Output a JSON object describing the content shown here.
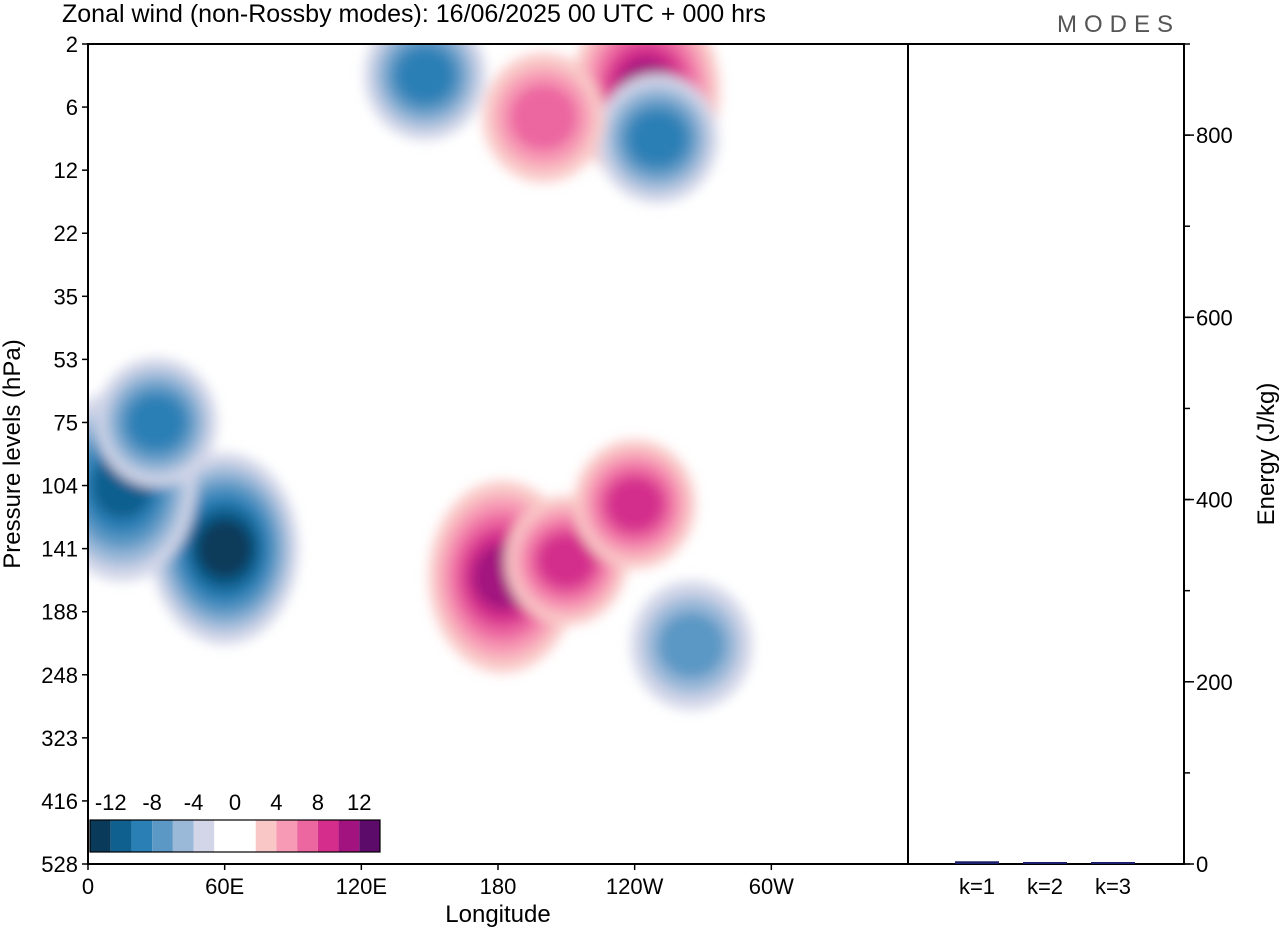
{
  "header": {
    "title": "Zonal wind (non-Rossby modes):  16/06/2025  00 UTC  + 000 hrs",
    "logo": "MODES"
  },
  "chart_data": [
    {
      "type": "heatmap",
      "title": "Zonal wind (non-Rossby modes):  16/06/2025  00 UTC  + 000 hrs",
      "xlabel": "Longitude",
      "ylabel": "Pressure levels (hPa)",
      "x_ticks": [
        "0",
        "60E",
        "120E",
        "180",
        "120W",
        "60W"
      ],
      "x_tick_degrees": [
        0,
        60,
        120,
        180,
        240,
        300
      ],
      "xlim": [
        0,
        360
      ],
      "y_levels": [
        "2",
        "6",
        "12",
        "22",
        "35",
        "53",
        "75",
        "104",
        "141",
        "188",
        "248",
        "323",
        "416",
        "528"
      ],
      "colorbar": {
        "labels": [
          "-12",
          "-8",
          "-4",
          "0",
          "4",
          "8",
          "12"
        ],
        "levels": [
          -14,
          -12,
          -10,
          -8,
          -6,
          -4,
          -2,
          0,
          2,
          4,
          6,
          8,
          10,
          12,
          14
        ],
        "colors": [
          "#0a3a5a",
          "#0f5f8f",
          "#2a7fb5",
          "#5c98c5",
          "#9ab8d8",
          "#d2d6e8",
          "#ffffff",
          "#ffffff",
          "#f9c8c6",
          "#f79ab5",
          "#ec66a0",
          "#d42d8c",
          "#a3137f",
          "#5c0b6b"
        ]
      },
      "features": [
        {
          "name": "jet-core-60E",
          "lon": 60,
          "level": "141",
          "value": -13
        },
        {
          "name": "west-low-0E",
          "lon": 15,
          "level": "104",
          "value": -10
        },
        {
          "name": "trop-neg-upper-0E",
          "lon": 30,
          "level": "75",
          "value": -8
        },
        {
          "name": "pos-center-180",
          "lon": 182,
          "level": "162",
          "value": 10
        },
        {
          "name": "pos-200E",
          "lon": 210,
          "level": "150",
          "value": 8
        },
        {
          "name": "pos-230E",
          "lon": 240,
          "level": "115",
          "value": 8
        },
        {
          "name": "neg-125W",
          "lon": 265,
          "level": "220",
          "value": -6
        },
        {
          "name": "pos-upper-120W",
          "lon": 245,
          "level": "5",
          "value": 10
        },
        {
          "name": "neg-upper-120W",
          "lon": 250,
          "level": "9",
          "value": -8
        },
        {
          "name": "neg-upper-140E",
          "lon": 148,
          "level": "4",
          "value": -8
        },
        {
          "name": "pos-upper-210E",
          "lon": 200,
          "level": "7",
          "value": 6
        }
      ]
    },
    {
      "type": "bar",
      "ylabel": "Energy (J/kg)",
      "categories": [
        "k=1",
        "k=2",
        "k=3"
      ],
      "values": [
        3,
        1,
        0.5
      ],
      "ylim": [
        0,
        900
      ],
      "y_ticks": [
        "0",
        "200",
        "400",
        "600",
        "800"
      ],
      "bar_color": "#1b1f6b"
    }
  ]
}
